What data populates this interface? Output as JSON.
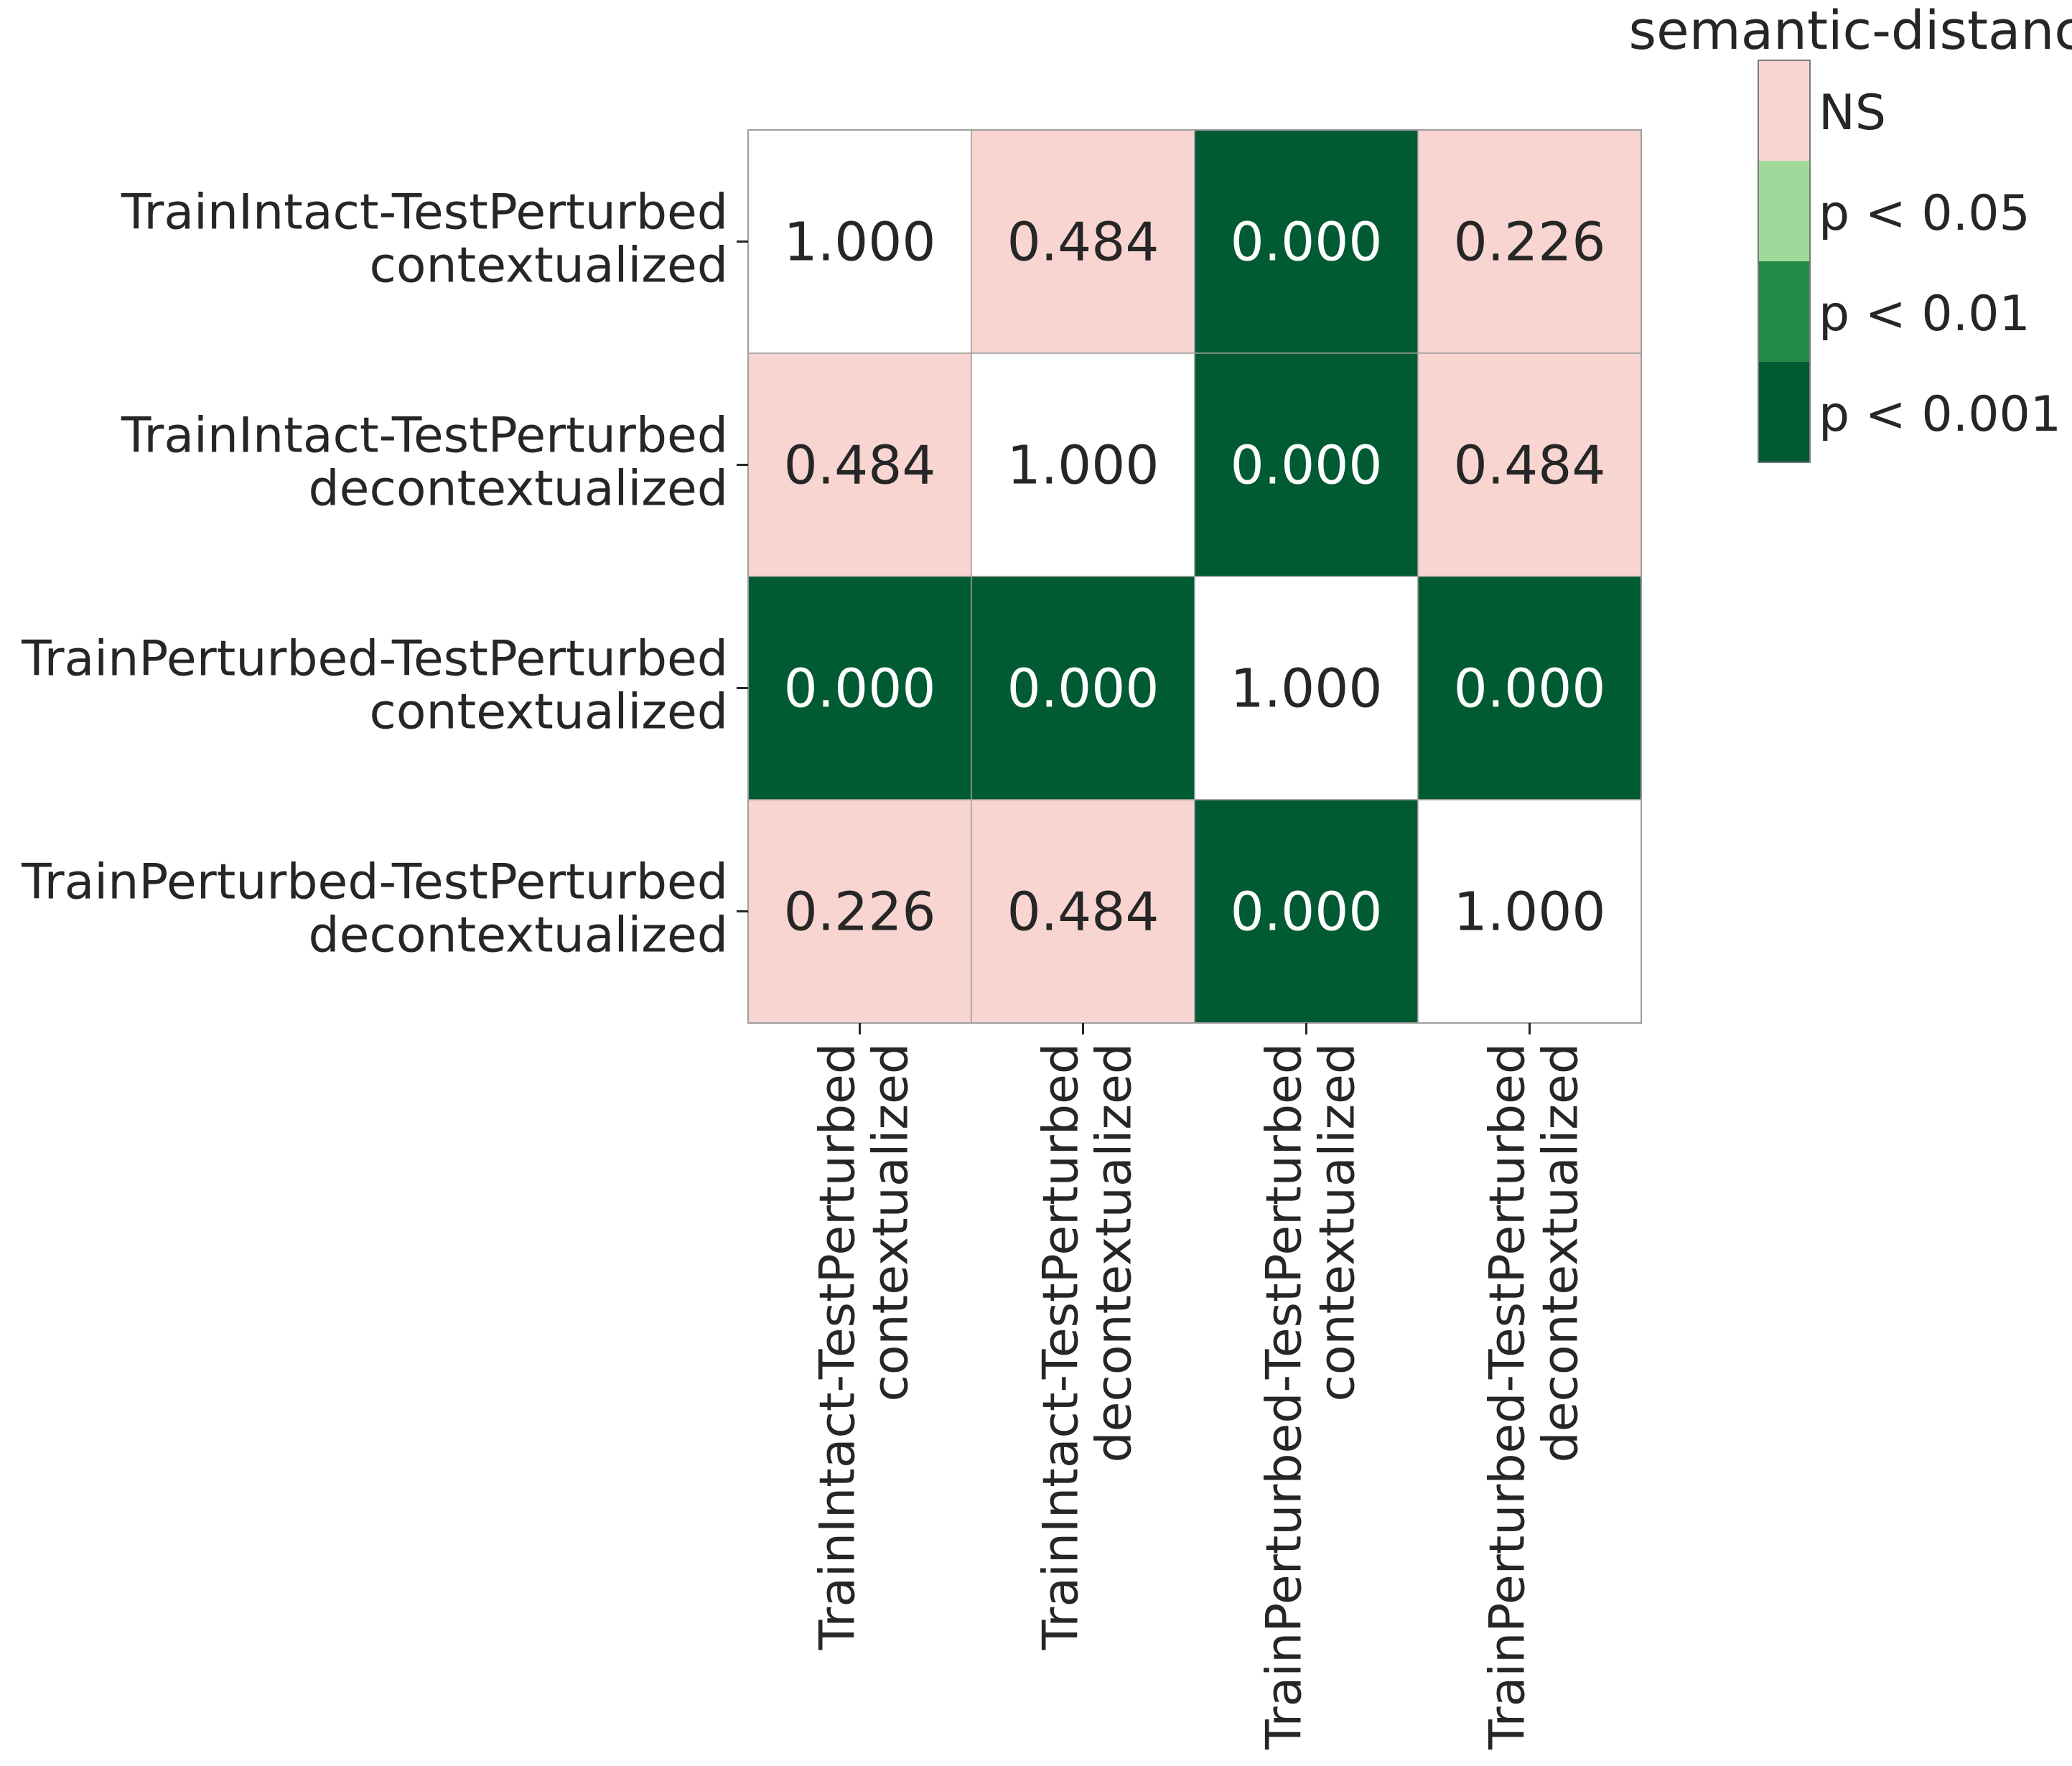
{
  "chart_data": {
    "type": "heatmap",
    "title": "semantic-distance",
    "row_labels": [
      [
        "TrainIntact-TestPerturbed",
        "contextualized"
      ],
      [
        "TrainIntact-TestPerturbed",
        "decontextualized"
      ],
      [
        "TrainPerturbed-TestPerturbed",
        "contextualized"
      ],
      [
        "TrainPerturbed-TestPerturbed",
        "decontextualized"
      ]
    ],
    "col_labels": [
      [
        "TrainIntact-TestPerturbed",
        "contextualized"
      ],
      [
        "TrainIntact-TestPerturbed",
        "decontextualized"
      ],
      [
        "TrainPerturbed-TestPerturbed",
        "contextualized"
      ],
      [
        "TrainPerturbed-TestPerturbed",
        "decontextualized"
      ]
    ],
    "values": [
      [
        "1.000",
        "0.484",
        "0.000",
        "0.226"
      ],
      [
        "0.484",
        "1.000",
        "0.000",
        "0.484"
      ],
      [
        "0.000",
        "0.000",
        "1.000",
        "0.000"
      ],
      [
        "0.226",
        "0.484",
        "0.000",
        "1.000"
      ]
    ],
    "legend": {
      "position": "top-right",
      "items": [
        {
          "label": "NS",
          "color": "#f8d5d1"
        },
        {
          "label": "p < 0.05",
          "color": "#a1d99b"
        },
        {
          "label": "p < 0.01",
          "color": "#238b45"
        },
        {
          "label": "p < 0.001",
          "color": "#005a32"
        }
      ]
    },
    "diagonal_color": "#ffffff",
    "grid": false
  }
}
